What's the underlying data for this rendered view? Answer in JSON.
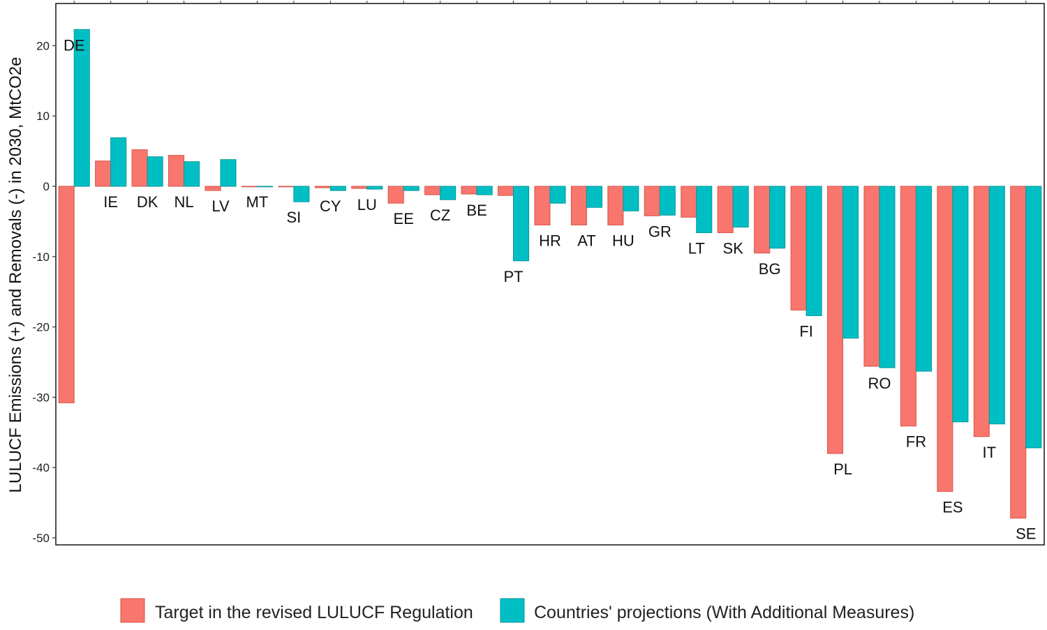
{
  "chart_data": {
    "type": "bar",
    "title": "",
    "xlabel": "",
    "ylabel": "LULUCF Emissions (+) and Removals (-) in 2030, MtCO2e",
    "ylim": [
      -51,
      26
    ],
    "yticks": [
      20,
      10,
      0,
      -10,
      -20,
      -30,
      -40,
      -50
    ],
    "ytick_labels": [
      "20",
      "10",
      "0",
      "-10",
      "-20",
      "-30",
      "-40",
      "-50"
    ],
    "grid": false,
    "legend_position": "bottom",
    "categories": [
      "DE",
      "IE",
      "DK",
      "NL",
      "LV",
      "MT",
      "SI",
      "CY",
      "LU",
      "EE",
      "CZ",
      "BE",
      "PT",
      "HR",
      "AT",
      "HU",
      "GR",
      "LT",
      "SK",
      "BG",
      "FI",
      "PL",
      "RO",
      "FR",
      "ES",
      "IT",
      "SE"
    ],
    "series": [
      {
        "name": "Target in the revised LULUCF Regulation",
        "color": "#f8766d",
        "values": [
          -30.8,
          3.6,
          5.2,
          4.4,
          -0.6,
          0.0,
          0.0,
          -0.2,
          -0.3,
          -2.4,
          -1.2,
          -1.1,
          -1.3,
          -5.5,
          -5.5,
          -5.5,
          -4.2,
          -4.4,
          -6.6,
          -9.5,
          -17.6,
          -38.0,
          -25.6,
          -34.1,
          -43.4,
          -35.6,
          -47.2
        ]
      },
      {
        "name": "Countries' projections (With Additional Measures)",
        "color": "#00bfc4",
        "values": [
          22.3,
          6.9,
          4.2,
          3.5,
          3.8,
          0.0,
          -2.2,
          -0.6,
          -0.4,
          -0.6,
          -1.9,
          -1.2,
          -10.6,
          -2.4,
          -3.0,
          -3.5,
          -4.1,
          -6.6,
          -5.8,
          -8.8,
          -18.4,
          -21.6,
          -25.8,
          -26.3,
          -33.5,
          -33.8,
          -37.2
        ]
      }
    ]
  }
}
